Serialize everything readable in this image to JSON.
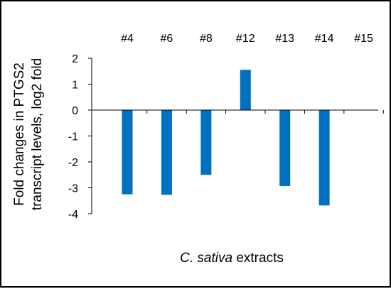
{
  "chart_data": {
    "type": "bar",
    "categories": [
      "#4",
      "#6",
      "#8",
      "#12",
      "#13",
      "#14",
      "#15"
    ],
    "values": [
      -3.25,
      -3.27,
      -2.5,
      1.55,
      -2.93,
      -3.68,
      0
    ],
    "ylabel_line1": "Fold changes in PTGS2",
    "ylabel_line2": "transcript levels, log2 fold",
    "xlabel_italic": "C. sativa",
    "xlabel_rest": " extracts",
    "ylim": [
      -4,
      2
    ],
    "yticks": [
      "2",
      "1",
      "0",
      "-1",
      "-2",
      "-3",
      "-4"
    ],
    "grid": false,
    "bar_color": "#0070c0"
  }
}
